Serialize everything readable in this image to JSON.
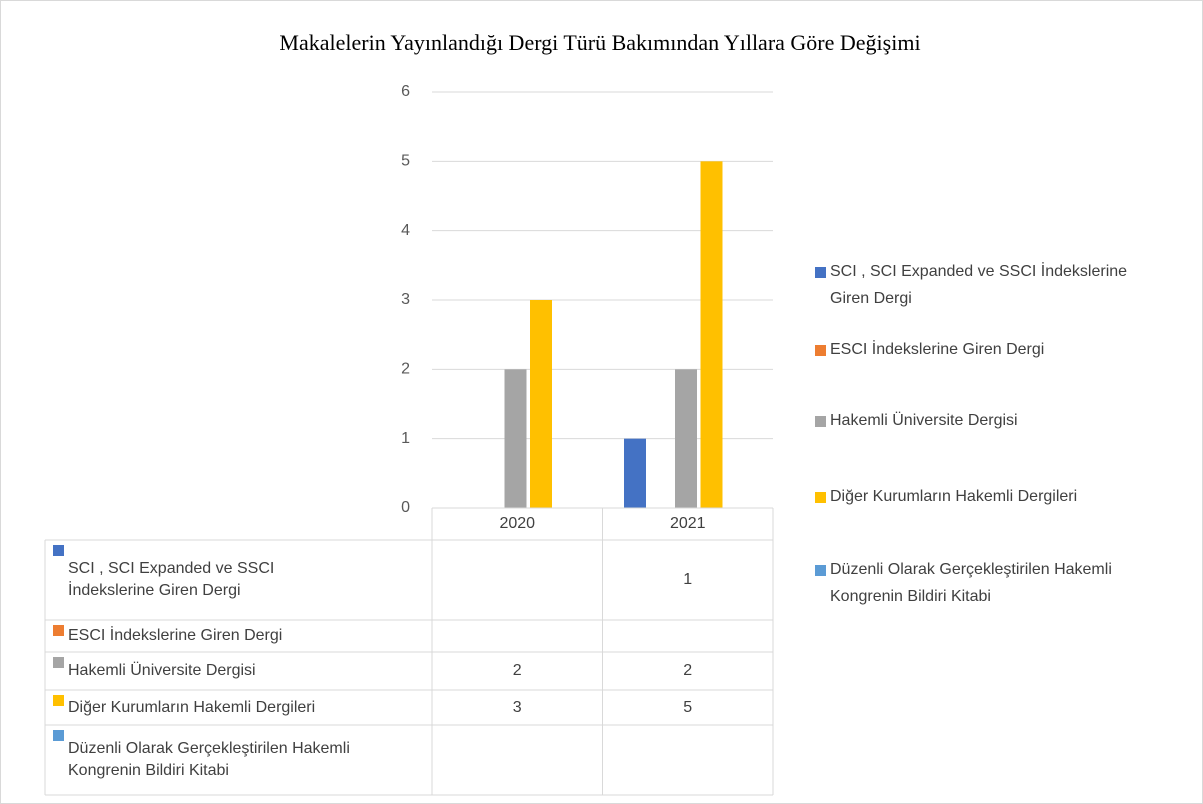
{
  "chart_data": {
    "type": "bar",
    "title": "Makalelerin Yayınlandığı Dergi Türü Bakımından Yıllara Göre Değişimi",
    "categories": [
      "2020",
      "2021"
    ],
    "series": [
      {
        "name": "SCI , SCI Expanded ve SSCI İndekslerine Giren Dergi",
        "color": "#4472c4",
        "values": [
          null,
          1
        ]
      },
      {
        "name": "ESCI İndekslerine Giren Dergi",
        "color": "#ed7d31",
        "values": [
          null,
          null
        ]
      },
      {
        "name": "Hakemli Üniversite Dergisi",
        "color": "#a5a5a5",
        "values": [
          2,
          2
        ]
      },
      {
        "name": "Diğer Kurumların Hakemli Dergileri",
        "color": "#ffc000",
        "values": [
          3,
          5
        ]
      },
      {
        "name": "Düzenli Olarak Gerçekleştirilen Hakemli Kongrenin Bildiri Kitabi",
        "color": "#5b9bd5",
        "values": [
          null,
          null
        ]
      }
    ],
    "ylim": [
      0,
      6
    ],
    "yticks": [
      0,
      1,
      2,
      3,
      4,
      5,
      6
    ],
    "grid": true,
    "legend": "right",
    "data_table": true
  }
}
